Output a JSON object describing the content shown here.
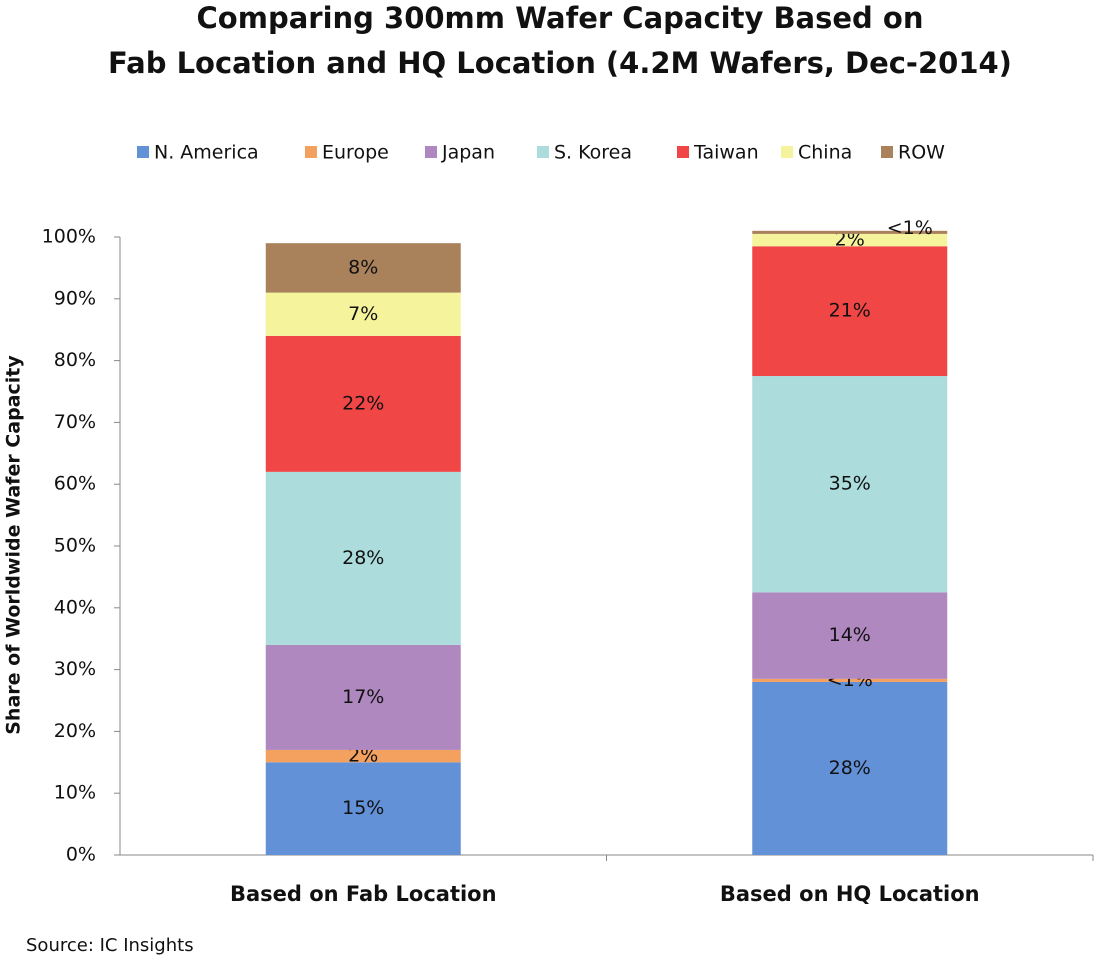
{
  "chart_data": {
    "type": "stacked-bar",
    "title": [
      "Comparing 300mm Wafer Capacity Based on",
      "Fab Location and HQ Location (4.2M Wafers, Dec-2014)"
    ],
    "y_label": "Share of Worldwide Wafer Capacity",
    "source": "Source:  IC Insights",
    "categories": [
      "Based on Fab Location",
      "Based on HQ Location"
    ],
    "series": [
      {
        "name": "N. America",
        "color": "#6391d8",
        "values": [
          15,
          28
        ],
        "value_labels": [
          "15%",
          "28%"
        ]
      },
      {
        "name": "Europe",
        "color": "#f4a160",
        "values": [
          2,
          0.5
        ],
        "value_labels": [
          "2%",
          "<1%"
        ]
      },
      {
        "name": "Japan",
        "color": "#b088c0",
        "values": [
          17,
          14
        ],
        "value_labels": [
          "17%",
          "14%"
        ]
      },
      {
        "name": "S. Korea",
        "color": "#acdcdc",
        "values": [
          28,
          35
        ],
        "value_labels": [
          "28%",
          "35%"
        ]
      },
      {
        "name": "Taiwan",
        "color": "#f04646",
        "values": [
          22,
          21
        ],
        "value_labels": [
          "22%",
          "21%"
        ]
      },
      {
        "name": "China",
        "color": "#f5f49c",
        "values": [
          7,
          2
        ],
        "value_labels": [
          "7%",
          "2%"
        ]
      },
      {
        "name": "ROW",
        "color": "#a9825c",
        "values": [
          8,
          0.5
        ],
        "value_labels": [
          "8%",
          "<1%"
        ]
      }
    ],
    "ylim": [
      0,
      100
    ],
    "yticks": [
      {
        "value": 0,
        "label": "0%"
      },
      {
        "value": 10,
        "label": "10%"
      },
      {
        "value": 20,
        "label": "20%"
      },
      {
        "value": 30,
        "label": "30%"
      },
      {
        "value": 40,
        "label": "40%"
      },
      {
        "value": 50,
        "label": "50%"
      },
      {
        "value": 60,
        "label": "60%"
      },
      {
        "value": 70,
        "label": "70%"
      },
      {
        "value": 80,
        "label": "80%"
      },
      {
        "value": 90,
        "label": "90%"
      },
      {
        "value": 100,
        "label": "100%"
      }
    ],
    "legend": "top"
  }
}
